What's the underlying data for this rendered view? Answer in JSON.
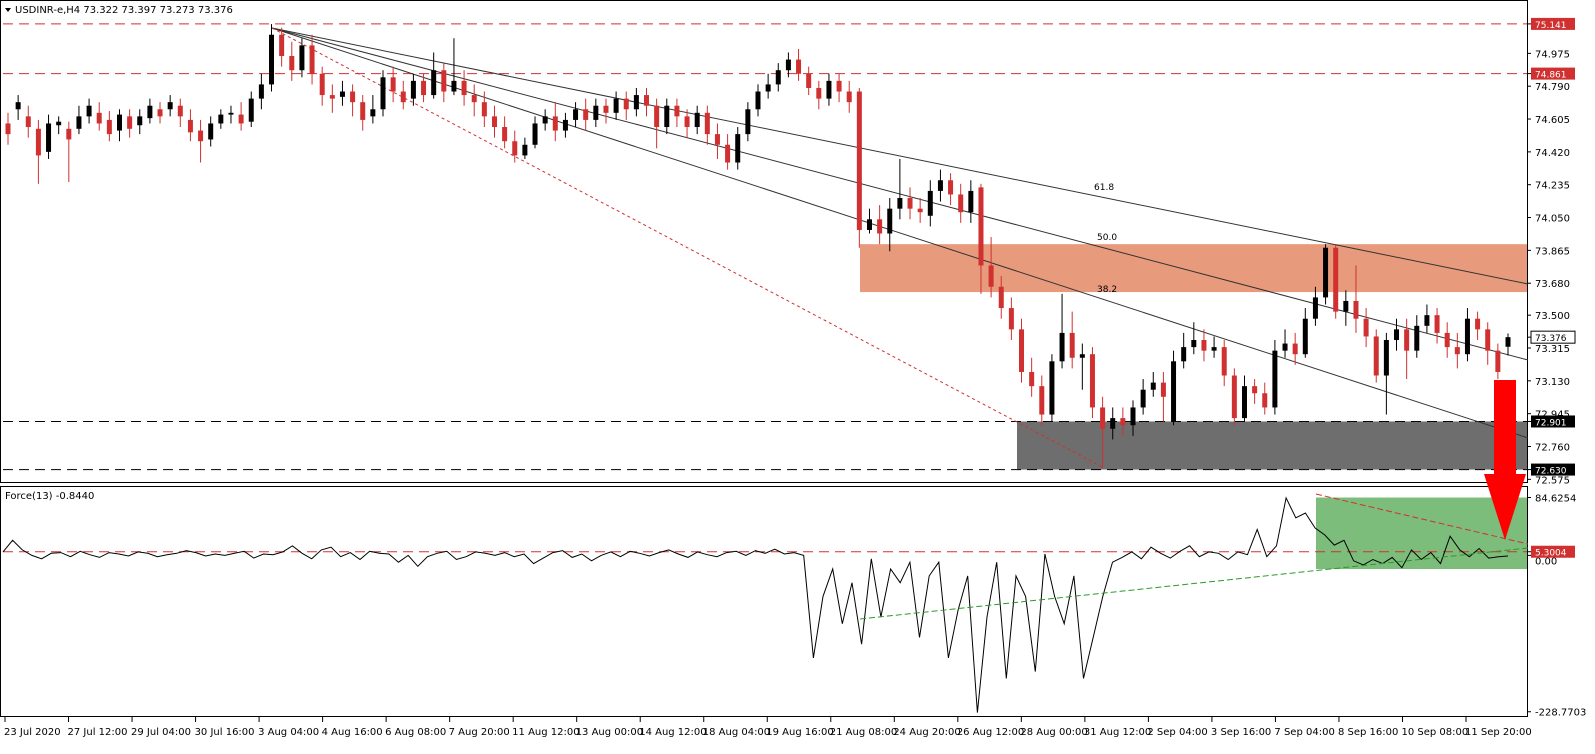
{
  "header": {
    "symbol_line": "USDINR-e,H4  73.322 73.397 73.273 73.376",
    "indicator_line": "Force(13) -0.8440"
  },
  "colors": {
    "bull": "#000000",
    "bear": "#d03030",
    "resistance_zone": "#e89a7c",
    "support_zone": "#6e6e6e",
    "force_zone": "#7cbd7c",
    "arrow": "#ff0000"
  },
  "chart_data": [
    {
      "type": "candlestick",
      "title": "USDINR-e,H4",
      "last_bar": {
        "open": 73.322,
        "high": 73.397,
        "low": 73.273,
        "close": 73.376
      },
      "y_ticks": [
        75.141,
        74.975,
        74.861,
        74.79,
        74.605,
        74.42,
        74.235,
        74.05,
        73.865,
        73.68,
        73.5,
        73.376,
        73.315,
        73.13,
        72.945,
        72.901,
        72.76,
        72.63,
        72.575
      ],
      "ylim": [
        72.56,
        75.27
      ],
      "x_tick_labels": [
        "23 Jul 2020",
        "27 Jul 12:00",
        "29 Jul 04:00",
        "30 Jul 16:00",
        "3 Aug 04:00",
        "4 Aug 16:00",
        "6 Aug 08:00",
        "7 Aug 20:00",
        "11 Aug 12:00",
        "13 Aug 00:00",
        "14 Aug 12:00",
        "18 Aug 04:00",
        "19 Aug 16:00",
        "21 Aug 08:00",
        "24 Aug 20:00",
        "26 Aug 12:00",
        "28 Aug 00:00",
        "31 Aug 12:00",
        "2 Sep 04:00",
        "3 Sep 16:00",
        "7 Sep 04:00",
        "8 Sep 16:00",
        "10 Sep 08:00",
        "11 Sep 20:00"
      ],
      "horizontal_levels": [
        {
          "label": "75.141",
          "value": 75.141,
          "color": "#d03030"
        },
        {
          "label": "74.861",
          "value": 74.861,
          "color": "#d03030"
        },
        {
          "label": "72.901",
          "value": 72.901,
          "color": "#000000"
        },
        {
          "label": "72.630",
          "value": 72.63,
          "color": "#000000"
        }
      ],
      "fib_labels": [
        "61.8",
        "50.0",
        "38.2"
      ],
      "resistance_zone": {
        "from": 73.63,
        "to": 73.9
      },
      "support_zone": {
        "from": 72.63,
        "to": 72.901
      },
      "current_price_label": "73.376",
      "candles": [
        [
          74.58,
          74.52,
          74.64,
          74.46
        ],
        [
          74.66,
          74.7,
          74.74,
          74.6
        ],
        [
          74.62,
          74.56,
          74.68,
          74.5
        ],
        [
          74.55,
          74.4,
          74.6,
          74.24
        ],
        [
          74.42,
          74.58,
          74.63,
          74.38
        ],
        [
          74.57,
          74.59,
          74.62,
          74.52
        ],
        [
          74.55,
          74.49,
          74.59,
          74.25
        ],
        [
          74.55,
          74.62,
          74.68,
          74.52
        ],
        [
          74.62,
          74.68,
          74.72,
          74.58
        ],
        [
          74.64,
          74.58,
          74.7,
          74.54
        ],
        [
          74.6,
          74.52,
          74.65,
          74.48
        ],
        [
          74.54,
          74.63,
          74.66,
          74.48
        ],
        [
          74.62,
          74.55,
          74.66,
          74.5
        ],
        [
          74.57,
          74.62,
          74.66,
          74.52
        ],
        [
          74.61,
          74.68,
          74.72,
          74.58
        ],
        [
          74.66,
          74.62,
          74.7,
          74.58
        ],
        [
          74.66,
          74.7,
          74.74,
          74.62
        ],
        [
          74.68,
          74.62,
          74.72,
          74.56
        ],
        [
          74.6,
          74.53,
          74.66,
          74.48
        ],
        [
          74.54,
          74.48,
          74.6,
          74.36
        ],
        [
          74.49,
          74.58,
          74.62,
          74.45
        ],
        [
          74.58,
          74.63,
          74.66,
          74.55
        ],
        [
          74.63,
          74.64,
          74.68,
          74.58
        ],
        [
          74.63,
          74.58,
          74.7,
          74.54
        ],
        [
          74.59,
          74.72,
          74.76,
          74.56
        ],
        [
          74.72,
          74.8,
          74.86,
          74.66
        ],
        [
          74.8,
          75.08,
          75.14,
          74.76
        ],
        [
          75.08,
          74.96,
          75.12,
          74.9
        ],
        [
          74.96,
          74.88,
          75.04,
          74.82
        ],
        [
          74.88,
          75.02,
          75.06,
          74.84
        ],
        [
          75.02,
          74.86,
          75.08,
          74.8
        ],
        [
          74.86,
          74.74,
          74.9,
          74.68
        ],
        [
          74.74,
          74.72,
          74.8,
          74.64
        ],
        [
          74.73,
          74.76,
          74.82,
          74.68
        ],
        [
          74.76,
          74.7,
          74.8,
          74.62
        ],
        [
          74.7,
          74.6,
          74.74,
          74.54
        ],
        [
          74.62,
          74.66,
          74.74,
          74.58
        ],
        [
          74.66,
          74.84,
          74.88,
          74.62
        ],
        [
          74.84,
          74.76,
          74.9,
          74.7
        ],
        [
          74.76,
          74.7,
          74.82,
          74.66
        ],
        [
          74.72,
          74.82,
          74.86,
          74.68
        ],
        [
          74.82,
          74.74,
          74.86,
          74.7
        ],
        [
          74.74,
          74.88,
          74.98,
          74.72
        ],
        [
          74.88,
          74.76,
          74.92,
          74.7
        ],
        [
          74.76,
          74.82,
          75.06,
          74.74
        ],
        [
          74.82,
          74.74,
          74.88,
          74.68
        ],
        [
          74.74,
          74.7,
          74.8,
          74.62
        ],
        [
          74.7,
          74.62,
          74.76,
          74.56
        ],
        [
          74.62,
          74.56,
          74.68,
          74.5
        ],
        [
          74.56,
          74.48,
          74.62,
          74.44
        ],
        [
          74.48,
          74.4,
          74.54,
          74.36
        ],
        [
          74.4,
          74.46,
          74.5,
          74.38
        ],
        [
          74.46,
          74.58,
          74.62,
          74.44
        ],
        [
          74.58,
          74.62,
          74.66,
          74.54
        ],
        [
          74.62,
          74.54,
          74.7,
          74.48
        ],
        [
          74.54,
          74.6,
          74.64,
          74.5
        ],
        [
          74.6,
          74.66,
          74.7,
          74.56
        ],
        [
          74.66,
          74.6,
          74.72,
          74.54
        ],
        [
          74.6,
          74.68,
          74.72,
          74.56
        ],
        [
          74.68,
          74.64,
          74.72,
          74.58
        ],
        [
          74.64,
          74.72,
          74.76,
          74.6
        ],
        [
          74.72,
          74.66,
          74.76,
          74.6
        ],
        [
          74.66,
          74.74,
          74.78,
          74.62
        ],
        [
          74.74,
          74.68,
          74.78,
          74.62
        ],
        [
          74.68,
          74.56,
          74.72,
          74.44
        ],
        [
          74.56,
          74.68,
          74.72,
          74.52
        ],
        [
          74.68,
          74.62,
          74.72,
          74.56
        ],
        [
          74.62,
          74.56,
          74.66,
          74.5
        ],
        [
          74.56,
          74.64,
          74.68,
          74.52
        ],
        [
          74.64,
          74.52,
          74.68,
          74.46
        ],
        [
          74.52,
          74.46,
          74.58,
          74.38
        ],
        [
          74.46,
          74.36,
          74.52,
          74.32
        ],
        [
          74.36,
          74.52,
          74.56,
          74.32
        ],
        [
          74.52,
          74.66,
          74.7,
          74.48
        ],
        [
          74.66,
          74.76,
          74.8,
          74.62
        ],
        [
          74.76,
          74.8,
          74.86,
          74.72
        ],
        [
          74.8,
          74.88,
          74.92,
          74.76
        ],
        [
          74.88,
          74.94,
          74.98,
          74.84
        ],
        [
          74.94,
          74.86,
          75.0,
          74.82
        ],
        [
          74.86,
          74.78,
          74.9,
          74.74
        ],
        [
          74.78,
          74.72,
          74.82,
          74.66
        ],
        [
          74.72,
          74.82,
          74.86,
          74.68
        ],
        [
          74.82,
          74.76,
          74.86,
          74.7
        ],
        [
          74.76,
          74.7,
          74.82,
          74.64
        ],
        [
          74.76,
          73.98,
          74.78,
          73.88
        ],
        [
          73.98,
          74.04,
          74.1,
          73.96
        ],
        [
          74.04,
          73.96,
          74.12,
          73.9
        ],
        [
          73.96,
          74.1,
          74.16,
          73.86
        ],
        [
          74.1,
          74.16,
          74.38,
          74.04
        ],
        [
          74.16,
          74.1,
          74.22,
          74.04
        ],
        [
          74.1,
          74.08,
          74.16,
          74.02
        ],
        [
          74.06,
          74.2,
          74.26,
          74.0
        ],
        [
          74.2,
          74.26,
          74.32,
          74.14
        ],
        [
          74.26,
          74.18,
          74.3,
          74.12
        ],
        [
          74.18,
          74.08,
          74.24,
          74.02
        ],
        [
          74.08,
          74.2,
          74.26,
          74.02
        ],
        [
          74.22,
          73.78,
          74.24,
          73.62
        ],
        [
          73.78,
          73.66,
          73.94,
          73.6
        ],
        [
          73.66,
          73.54,
          73.72,
          73.48
        ],
        [
          73.54,
          73.42,
          73.6,
          73.36
        ],
        [
          73.42,
          73.18,
          73.48,
          73.12
        ],
        [
          73.18,
          73.1,
          73.26,
          73.04
        ],
        [
          73.1,
          72.94,
          73.16,
          72.88
        ],
        [
          72.94,
          73.24,
          73.28,
          72.9
        ],
        [
          73.24,
          73.4,
          73.62,
          73.2
        ],
        [
          73.4,
          73.26,
          73.52,
          73.2
        ],
        [
          73.26,
          73.28,
          73.34,
          73.08
        ],
        [
          73.28,
          72.98,
          73.32,
          72.92
        ],
        [
          72.98,
          72.86,
          73.04,
          72.64
        ],
        [
          72.86,
          72.92,
          72.98,
          72.8
        ],
        [
          72.92,
          72.88,
          72.98,
          72.82
        ],
        [
          72.88,
          72.98,
          73.02,
          72.82
        ],
        [
          72.98,
          73.08,
          73.14,
          72.94
        ],
        [
          73.08,
          73.12,
          73.18,
          73.04
        ],
        [
          73.12,
          73.04,
          73.18,
          72.9
        ],
        [
          72.9,
          73.24,
          73.3,
          72.88
        ],
        [
          73.24,
          73.32,
          73.4,
          73.2
        ],
        [
          73.32,
          73.36,
          73.46,
          73.28
        ],
        [
          73.36,
          73.3,
          73.42,
          73.24
        ],
        [
          73.3,
          73.32,
          73.38,
          73.26
        ],
        [
          73.32,
          73.16,
          73.36,
          73.1
        ],
        [
          73.16,
          72.92,
          73.2,
          72.88
        ],
        [
          72.92,
          73.1,
          73.16,
          72.9
        ],
        [
          73.1,
          73.06,
          73.14,
          73.0
        ],
        [
          73.06,
          72.98,
          73.12,
          72.94
        ],
        [
          72.98,
          73.3,
          73.36,
          72.94
        ],
        [
          73.3,
          73.34,
          73.42,
          73.26
        ],
        [
          73.34,
          73.28,
          73.4,
          73.22
        ],
        [
          73.28,
          73.48,
          73.54,
          73.26
        ],
        [
          73.48,
          73.6,
          73.66,
          73.44
        ],
        [
          73.6,
          73.88,
          73.9,
          73.56
        ],
        [
          73.88,
          73.52,
          73.9,
          73.48
        ],
        [
          73.52,
          73.58,
          73.64,
          73.44
        ],
        [
          73.58,
          73.48,
          73.78,
          73.4
        ],
        [
          73.48,
          73.38,
          73.54,
          73.32
        ],
        [
          73.38,
          73.16,
          73.42,
          73.12
        ],
        [
          73.16,
          73.36,
          73.4,
          72.94
        ],
        [
          73.36,
          73.42,
          73.48,
          73.3
        ],
        [
          73.42,
          73.3,
          73.48,
          73.14
        ],
        [
          73.3,
          73.44,
          73.5,
          73.26
        ],
        [
          73.44,
          73.5,
          73.56,
          73.4
        ],
        [
          73.5,
          73.4,
          73.54,
          73.34
        ],
        [
          73.4,
          73.32,
          73.46,
          73.26
        ],
        [
          73.32,
          73.28,
          73.4,
          73.2
        ],
        [
          73.28,
          73.48,
          73.54,
          73.24
        ],
        [
          73.48,
          73.42,
          73.52,
          73.36
        ],
        [
          73.42,
          73.3,
          73.46,
          73.22
        ],
        [
          73.3,
          73.18,
          73.34,
          73.14
        ],
        [
          73.322,
          73.376,
          73.397,
          73.273
        ]
      ]
    },
    {
      "type": "line",
      "title": "Force(13)",
      "last_value": -0.844,
      "y_ticks": [
        84.6254,
        5.3004,
        0.0,
        -228.7703
      ],
      "tick_labels": [
        "84.6254",
        "5.3004",
        "0.00",
        "-228.7703"
      ],
      "ylim": [
        -235,
        100
      ],
      "level_label": "5.3004",
      "zone": {
        "from": -20,
        "to": 84.6
      },
      "values": [
        5,
        22,
        8,
        0,
        -5,
        3,
        4,
        -2,
        6,
        1,
        -3,
        4,
        2,
        -1,
        5,
        3,
        -2,
        1,
        3,
        7,
        4,
        -1,
        2,
        0,
        3,
        6,
        -4,
        2,
        1,
        5,
        14,
        3,
        -5,
        8,
        12,
        -2,
        4,
        -6,
        6,
        3,
        2,
        -10,
        0,
        -16,
        -2,
        3,
        6,
        -6,
        -2,
        5,
        3,
        0,
        4,
        -2,
        2,
        -12,
        -4,
        4,
        7,
        -3,
        2,
        -8,
        0,
        5,
        -2,
        6,
        3,
        -1,
        4,
        8,
        2,
        -3,
        5,
        1,
        -2,
        4,
        6,
        0,
        7,
        3,
        9,
        2,
        4,
        0,
        -150,
        -60,
        -20,
        -100,
        -40,
        -130,
        -5,
        -90,
        -20,
        -40,
        -10,
        -120,
        -30,
        -10,
        -150,
        -80,
        -30,
        -230,
        -90,
        -10,
        -180,
        -30,
        -60,
        -170,
        2,
        -60,
        -100,
        -30,
        -180,
        -120,
        -60,
        -10,
        -3,
        5,
        -5,
        12,
        3,
        -4,
        6,
        14,
        -2,
        5,
        3,
        -6,
        5,
        1,
        38,
        -2,
        14,
        84,
        55,
        62,
        40,
        30,
        15,
        22,
        -8,
        -14,
        -6,
        -12,
        -3,
        -18,
        8,
        -6,
        4,
        -12,
        28,
        8,
        -2,
        10,
        -4,
        -2,
        -1
      ]
    }
  ]
}
